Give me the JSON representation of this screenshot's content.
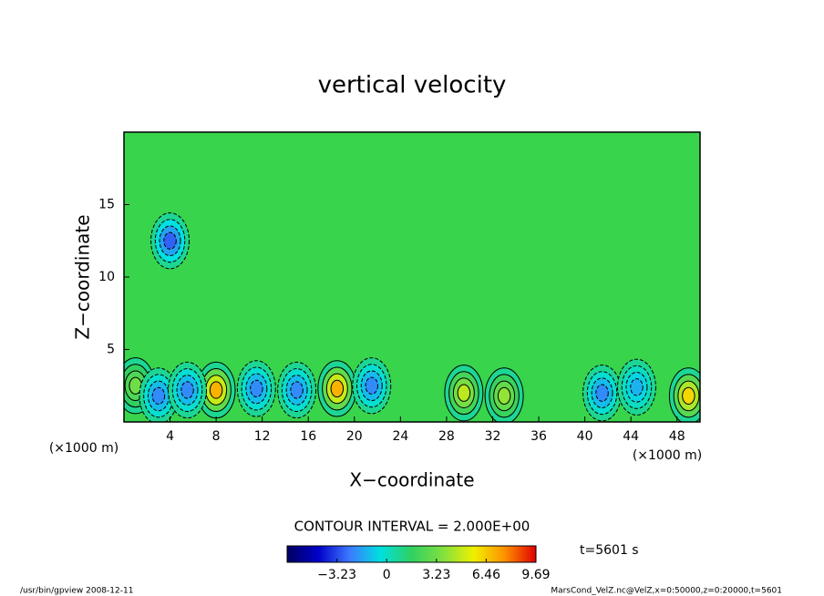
{
  "chart_data": {
    "type": "contour",
    "title": "vertical velocity",
    "x_label": "X−coordinate",
    "y_label": "Z−coordinate",
    "x_unit": "(×1000 m)",
    "y_unit": "(×1000 m)",
    "xlim": [
      0,
      50
    ],
    "xticks": [
      4,
      8,
      12,
      16,
      20,
      24,
      28,
      32,
      36,
      40,
      44,
      48
    ],
    "ylim": [
      0,
      20
    ],
    "yticks": [
      5,
      10,
      15
    ],
    "contour_interval_label": "CONTOUR INTERVAL = 2.000E+00",
    "time_label": "t=5601 s",
    "clim": [
      -6.46,
      9.69
    ],
    "cticks": [
      {
        "value": -3.23,
        "label": "−3.23"
      },
      0,
      3.23,
      6.46,
      9.69
    ],
    "colors": [
      "#000060",
      "#0000c8",
      "#3c78ff",
      "#00e0e0",
      "#30d060",
      "#80e040",
      "#f0f000",
      "#ff9000",
      "#e00000"
    ],
    "features": {
      "x": [
        8,
        18.5,
        49,
        29.5,
        33,
        1,
        3,
        5.5,
        11.5,
        15,
        21.5,
        41.5,
        44.5,
        4
      ],
      "z": [
        2.2,
        2.3,
        1.8,
        2,
        1.8,
        2.5,
        1.8,
        2.2,
        2.3,
        2.2,
        2.5,
        2,
        2.4,
        12.5
      ],
      "values": [
        9,
        9,
        8,
        6,
        5,
        4,
        -3,
        -3,
        -3,
        -3,
        -3,
        -3,
        -2,
        -4
      ]
    },
    "footer_left": "/usr/bin/gpview   2008-12-11",
    "footer_right": "MarsCond_VelZ.nc@VelZ,x=0:50000,z=0:20000,t=5601"
  }
}
